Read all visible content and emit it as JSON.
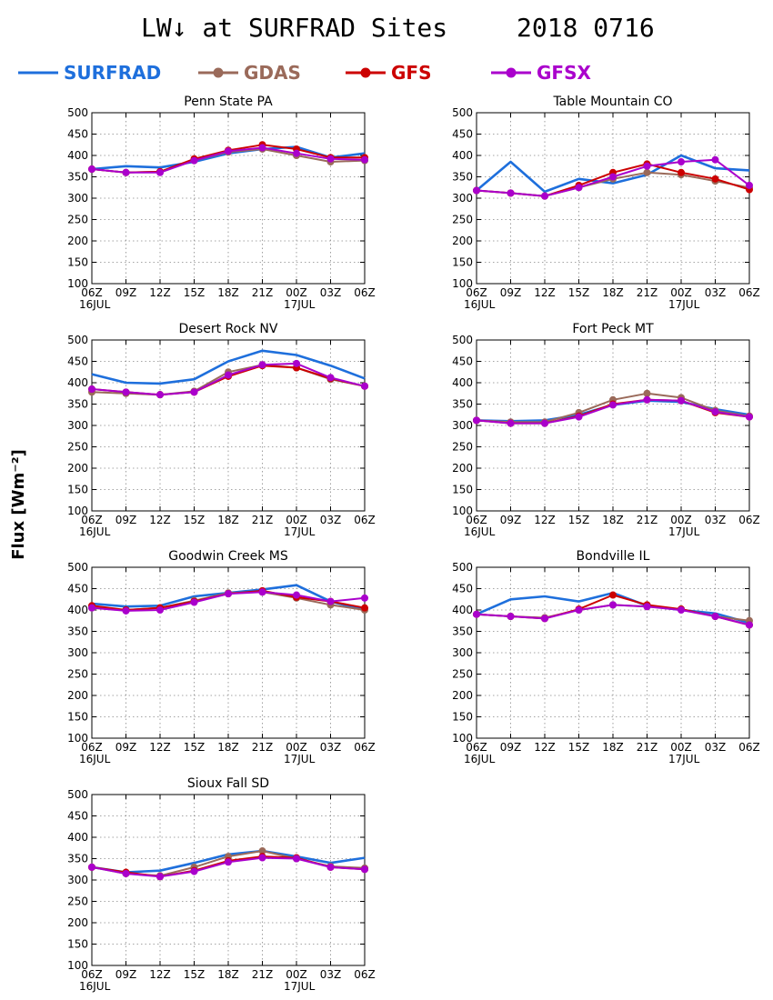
{
  "figure": {
    "title": "LW↓ at SURFRAD Sites",
    "date": "2018 0716",
    "ylabel": "Flux [Wm⁻²]"
  },
  "legend": [
    {
      "name": "SURFRAD",
      "color": "#1e6fdc",
      "marker": false
    },
    {
      "name": "GDAS",
      "color": "#9a6a5a",
      "marker": true
    },
    {
      "name": "GFS",
      "color": "#cc0000",
      "marker": true
    },
    {
      "name": "GFSX",
      "color": "#aa00cc",
      "marker": true
    }
  ],
  "chart_data": [
    {
      "type": "line",
      "title": "Penn State PA",
      "x": [
        "06Z",
        "09Z",
        "12Z",
        "15Z",
        "18Z",
        "21Z",
        "00Z",
        "03Z",
        "06Z"
      ],
      "x_sublabels": [
        "16JUL",
        "",
        "",
        "",
        "",
        "",
        "17JUL",
        "",
        ""
      ],
      "ylim": [
        100,
        500
      ],
      "yticks": [
        100,
        150,
        200,
        250,
        300,
        350,
        400,
        450,
        500
      ],
      "grid": true,
      "series": [
        {
          "name": "SURFRAD",
          "values": [
            368,
            375,
            372,
            385,
            405,
            415,
            420,
            395,
            405
          ]
        },
        {
          "name": "GDAS",
          "values": [
            368,
            360,
            362,
            388,
            408,
            415,
            400,
            385,
            388
          ]
        },
        {
          "name": "GFS",
          "values": [
            368,
            360,
            362,
            392,
            412,
            425,
            415,
            395,
            395
          ]
        },
        {
          "name": "GFSX",
          "values": [
            368,
            360,
            360,
            388,
            410,
            418,
            405,
            392,
            390
          ]
        }
      ]
    },
    {
      "type": "line",
      "title": "Table Mountain CO",
      "x": [
        "06Z",
        "09Z",
        "12Z",
        "15Z",
        "18Z",
        "21Z",
        "00Z",
        "03Z",
        "06Z"
      ],
      "x_sublabels": [
        "16JUL",
        "",
        "",
        "",
        "",
        "",
        "17JUL",
        "",
        ""
      ],
      "ylim": [
        100,
        500
      ],
      "yticks": [
        100,
        150,
        200,
        250,
        300,
        350,
        400,
        450,
        500
      ],
      "grid": true,
      "series": [
        {
          "name": "SURFRAD",
          "values": [
            318,
            385,
            315,
            345,
            335,
            355,
            400,
            370,
            365
          ]
        },
        {
          "name": "GDAS",
          "values": [
            318,
            312,
            305,
            325,
            345,
            360,
            355,
            340,
            325
          ]
        },
        {
          "name": "GFS",
          "values": [
            318,
            312,
            305,
            330,
            360,
            380,
            360,
            345,
            320
          ]
        },
        {
          "name": "GFSX",
          "values": [
            318,
            312,
            305,
            325,
            350,
            375,
            385,
            390,
            330
          ]
        }
      ]
    },
    {
      "type": "line",
      "title": "Desert Rock NV",
      "x": [
        "06Z",
        "09Z",
        "12Z",
        "15Z",
        "18Z",
        "21Z",
        "00Z",
        "03Z",
        "06Z"
      ],
      "x_sublabels": [
        "16JUL",
        "",
        "",
        "",
        "",
        "",
        "17JUL",
        "",
        ""
      ],
      "ylim": [
        100,
        500
      ],
      "yticks": [
        100,
        150,
        200,
        250,
        300,
        350,
        400,
        450,
        500
      ],
      "grid": true,
      "series": [
        {
          "name": "SURFRAD",
          "values": [
            420,
            400,
            398,
            408,
            450,
            475,
            465,
            440,
            410
          ]
        },
        {
          "name": "GDAS",
          "values": [
            378,
            375,
            372,
            380,
            425,
            442,
            435,
            408,
            392
          ]
        },
        {
          "name": "GFS",
          "values": [
            385,
            378,
            372,
            378,
            415,
            440,
            435,
            410,
            392
          ]
        },
        {
          "name": "GFSX",
          "values": [
            385,
            378,
            372,
            378,
            418,
            442,
            445,
            412,
            392
          ]
        }
      ]
    },
    {
      "type": "line",
      "title": "Fort Peck MT",
      "x": [
        "06Z",
        "09Z",
        "12Z",
        "15Z",
        "18Z",
        "21Z",
        "00Z",
        "03Z",
        "06Z"
      ],
      "x_sublabels": [
        "16JUL",
        "",
        "",
        "",
        "",
        "",
        "17JUL",
        "",
        ""
      ],
      "ylim": [
        100,
        500
      ],
      "yticks": [
        100,
        150,
        200,
        250,
        300,
        350,
        400,
        450,
        500
      ],
      "grid": true,
      "series": [
        {
          "name": "SURFRAD",
          "values": [
            312,
            310,
            312,
            325,
            348,
            358,
            355,
            338,
            325
          ]
        },
        {
          "name": "GDAS",
          "values": [
            312,
            308,
            308,
            330,
            360,
            375,
            365,
            335,
            322
          ]
        },
        {
          "name": "GFS",
          "values": [
            312,
            305,
            305,
            322,
            350,
            360,
            358,
            330,
            320
          ]
        },
        {
          "name": "GFSX",
          "values": [
            312,
            305,
            305,
            320,
            348,
            360,
            358,
            332,
            320
          ]
        }
      ]
    },
    {
      "type": "line",
      "title": "Goodwin Creek MS",
      "x": [
        "06Z",
        "09Z",
        "12Z",
        "15Z",
        "18Z",
        "21Z",
        "00Z",
        "03Z",
        "06Z"
      ],
      "x_sublabels": [
        "16JUL",
        "",
        "",
        "",
        "",
        "",
        "17JUL",
        "",
        ""
      ],
      "ylim": [
        100,
        500
      ],
      "yticks": [
        100,
        150,
        200,
        250,
        300,
        350,
        400,
        450,
        500
      ],
      "grid": true,
      "series": [
        {
          "name": "SURFRAD",
          "values": [
            415,
            408,
            410,
            432,
            440,
            448,
            458,
            420,
            400
          ]
        },
        {
          "name": "GDAS",
          "values": [
            405,
            400,
            405,
            422,
            440,
            442,
            428,
            412,
            400
          ]
        },
        {
          "name": "GFS",
          "values": [
            410,
            400,
            405,
            420,
            438,
            445,
            430,
            420,
            405
          ]
        },
        {
          "name": "GFSX",
          "values": [
            405,
            398,
            400,
            418,
            438,
            442,
            435,
            420,
            428
          ]
        }
      ]
    },
    {
      "type": "line",
      "title": "Bondville IL",
      "x": [
        "06Z",
        "09Z",
        "12Z",
        "15Z",
        "18Z",
        "21Z",
        "00Z",
        "03Z",
        "06Z"
      ],
      "x_sublabels": [
        "16JUL",
        "",
        "",
        "",
        "",
        "",
        "17JUL",
        "",
        ""
      ],
      "ylim": [
        100,
        500
      ],
      "yticks": [
        100,
        150,
        200,
        250,
        300,
        350,
        400,
        450,
        500
      ],
      "grid": true,
      "series": [
        {
          "name": "SURFRAD",
          "values": [
            390,
            425,
            432,
            420,
            440,
            410,
            400,
            392,
            370
          ]
        },
        {
          "name": "GDAS",
          "values": [
            390,
            385,
            382,
            400,
            412,
            408,
            402,
            385,
            375
          ]
        },
        {
          "name": "GFS",
          "values": [
            390,
            385,
            380,
            402,
            435,
            412,
            402,
            385,
            365
          ]
        },
        {
          "name": "GFSX",
          "values": [
            390,
            385,
            380,
            400,
            412,
            408,
            400,
            385,
            365
          ]
        }
      ]
    },
    {
      "type": "line",
      "title": "Sioux Fall SD",
      "x": [
        "06Z",
        "09Z",
        "12Z",
        "15Z",
        "18Z",
        "21Z",
        "00Z",
        "03Z",
        "06Z"
      ],
      "x_sublabels": [
        "16JUL",
        "",
        "",
        "",
        "",
        "",
        "17JUL",
        "",
        ""
      ],
      "ylim": [
        100,
        500
      ],
      "yticks": [
        100,
        150,
        200,
        250,
        300,
        350,
        400,
        450,
        500
      ],
      "grid": true,
      "series": [
        {
          "name": "SURFRAD",
          "values": [
            330,
            318,
            322,
            340,
            360,
            368,
            355,
            340,
            352
          ]
        },
        {
          "name": "GDAS",
          "values": [
            330,
            315,
            310,
            330,
            355,
            368,
            350,
            332,
            328
          ]
        },
        {
          "name": "GFS",
          "values": [
            330,
            318,
            308,
            322,
            345,
            355,
            352,
            330,
            325
          ]
        },
        {
          "name": "GFSX",
          "values": [
            330,
            315,
            308,
            320,
            342,
            352,
            350,
            330,
            325
          ]
        }
      ]
    }
  ]
}
